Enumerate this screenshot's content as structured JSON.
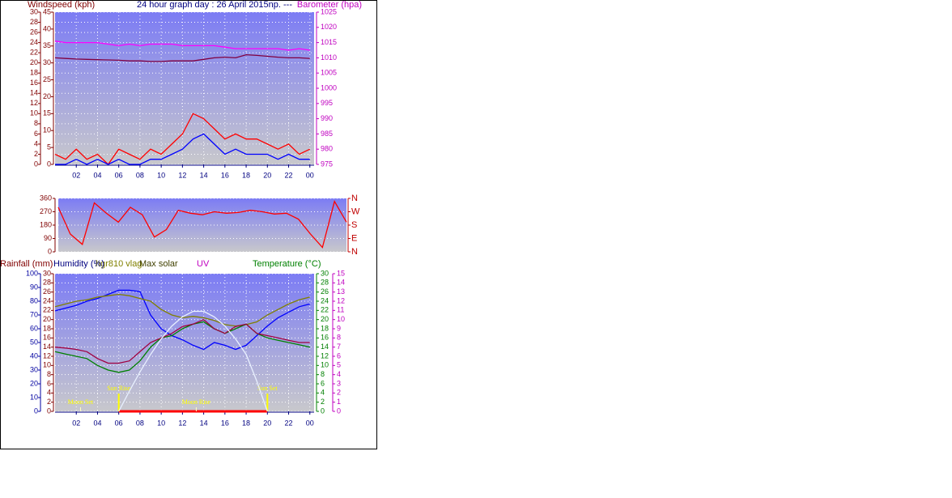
{
  "chart_data": [
    {
      "type": "line",
      "title": "24 hour graph day : 26 April 2015np. ---",
      "ylabel": "Windspeed (kph)",
      "y2label": "Barometer (hpa)",
      "x": [
        0,
        1,
        2,
        3,
        4,
        5,
        6,
        7,
        8,
        9,
        10,
        11,
        12,
        13,
        14,
        15,
        16,
        17,
        18,
        19,
        20,
        21,
        22,
        23,
        24
      ],
      "xlim": [
        0,
        24.4
      ],
      "xticks": [
        {
          "value": 2,
          "label": "02"
        },
        {
          "value": 4,
          "label": "04"
        },
        {
          "value": 6,
          "label": "06"
        },
        {
          "value": 8,
          "label": "08"
        },
        10,
        12,
        14,
        16,
        18,
        20,
        22,
        {
          "value": 24,
          "label": "00"
        }
      ],
      "ylim": [
        0,
        30
      ],
      "yticks": [
        0,
        2,
        4,
        6,
        8,
        10,
        12,
        14,
        16,
        18,
        20,
        22,
        24,
        26,
        28,
        30
      ],
      "y3lim": [
        0,
        45
      ],
      "y3ticks": [
        0,
        5,
        10,
        15,
        20,
        25,
        30,
        35,
        40,
        45
      ],
      "y2lim": [
        975,
        1025
      ],
      "y2ticks": [
        975,
        980,
        985,
        990,
        995,
        1000,
        1005,
        1010,
        1015,
        1020,
        1025
      ],
      "grid": true,
      "series": [
        {
          "color": "#ff0000",
          "values": [
            2,
            1,
            3,
            1,
            2,
            0,
            3,
            2,
            1,
            3,
            2,
            4,
            6,
            10,
            9,
            7,
            5,
            6,
            5,
            5,
            4,
            3,
            4,
            2,
            3
          ]
        },
        {
          "color": "#0000ff",
          "values": [
            0,
            0,
            1,
            0,
            1,
            0,
            1,
            0,
            0,
            1,
            1,
            2,
            3,
            5,
            6,
            4,
            2,
            3,
            2,
            2,
            2,
            1,
            2,
            1,
            1
          ]
        },
        {
          "color": "#ff00ff",
          "axis": "y2",
          "values": [
            1015.5,
            1015,
            1015,
            1015,
            1015,
            1014.5,
            1014,
            1014.5,
            1014,
            1014.5,
            1014.5,
            1014.5,
            1014,
            1014,
            1014,
            1014,
            1013.5,
            1013,
            1013,
            1013,
            1013,
            1013,
            1012.5,
            1013,
            1012.5
          ]
        },
        {
          "color": "#800040",
          "axis": "y2",
          "values": [
            1010,
            1009.8,
            1009.6,
            1009.5,
            1009.4,
            1009.3,
            1009.2,
            1009,
            1009,
            1008.8,
            1008.8,
            1009,
            1009,
            1009,
            1009.5,
            1010,
            1010.2,
            1010,
            1011,
            1010.8,
            1010.5,
            1010.2,
            1010,
            1010,
            1009.8
          ]
        }
      ]
    },
    {
      "type": "line",
      "x": [
        0,
        1,
        2,
        3,
        4,
        5,
        6,
        7,
        8,
        9,
        10,
        11,
        12,
        13,
        14,
        15,
        16,
        17,
        18,
        19,
        20,
        21,
        22,
        23,
        24
      ],
      "xlim": [
        0,
        24
      ],
      "ylim": [
        0,
        360
      ],
      "yticks": [
        0,
        90,
        180,
        270,
        360
      ],
      "y2lim": [
        0,
        360
      ],
      "y2ticks": [
        {
          "value": 0,
          "label": "N"
        },
        {
          "value": 90,
          "label": "E"
        },
        {
          "value": 180,
          "label": "S"
        },
        {
          "value": 270,
          "label": "W"
        },
        {
          "value": 360,
          "label": "N"
        }
      ],
      "grid": true,
      "series": [
        {
          "color": "#ff0000",
          "values": [
            300,
            120,
            50,
            330,
            260,
            200,
            300,
            250,
            100,
            150,
            280,
            260,
            250,
            270,
            260,
            265,
            280,
            270,
            255,
            260,
            220,
            120,
            30,
            340,
            200
          ]
        }
      ]
    },
    {
      "type": "line",
      "ylabel": "Rainfall (mm)",
      "y3label": "Humidity (%)",
      "y4label": "UV",
      "y2label": "Temperature (°C)",
      "x": [
        0,
        1,
        2,
        3,
        4,
        5,
        6,
        7,
        8,
        9,
        10,
        11,
        12,
        13,
        14,
        15,
        16,
        17,
        18,
        19,
        20,
        21,
        22,
        23,
        24
      ],
      "xlim": [
        0,
        24.4
      ],
      "xticks": [
        {
          "value": 2,
          "label": "02"
        },
        {
          "value": 4,
          "label": "04"
        },
        {
          "value": 6,
          "label": "06"
        },
        {
          "value": 8,
          "label": "08"
        },
        10,
        12,
        14,
        16,
        18,
        20,
        22,
        {
          "value": 24,
          "label": "00"
        }
      ],
      "ylim": [
        0,
        30
      ],
      "yticks": [
        0,
        2,
        4,
        6,
        8,
        10,
        12,
        14,
        16,
        18,
        20,
        22,
        24,
        26,
        28,
        30
      ],
      "y3lim": [
        0,
        100
      ],
      "y3ticks": [
        0,
        10,
        20,
        30,
        40,
        50,
        60,
        70,
        80,
        90,
        100
      ],
      "y2lim": [
        0,
        30
      ],
      "y2ticks": [
        0,
        2,
        4,
        6,
        8,
        10,
        12,
        14,
        16,
        18,
        20,
        22,
        24,
        26,
        28,
        30
      ],
      "y4lim": [
        0,
        15
      ],
      "y4ticks": [
        0,
        1,
        2,
        3,
        4,
        5,
        6,
        7,
        8,
        9,
        10,
        11,
        12,
        13,
        14,
        15
      ],
      "grid": true,
      "annotations": [
        {
          "text": "Moon Set",
          "x": 2.4
        },
        {
          "text": "Sun Rise",
          "x": 6
        },
        {
          "text": "Moon Rise",
          "x": 13.3
        },
        {
          "text": "Sun Set",
          "x": 20
        }
      ],
      "series": [
        {
          "color": "#0000ff",
          "axis": "y3",
          "values": [
            73,
            75,
            77,
            80,
            82,
            85,
            88,
            88,
            87,
            70,
            60,
            55,
            52,
            48,
            45,
            50,
            48,
            45,
            48,
            55,
            62,
            68,
            72,
            76,
            78
          ]
        },
        {
          "name": "hgr810 vlag",
          "color": "#808000",
          "axis": "y3",
          "values": [
            76,
            78,
            80,
            81,
            83,
            84,
            85,
            84,
            82,
            80,
            74,
            70,
            68,
            69,
            68,
            66,
            63,
            62,
            63,
            65,
            70,
            74,
            78,
            81,
            83
          ]
        },
        {
          "color": "#008000",
          "axis": "y2",
          "values": [
            13,
            12.5,
            12,
            11.5,
            10,
            9,
            8.5,
            9,
            11,
            14,
            16,
            16.5,
            18,
            19,
            19.5,
            18,
            17,
            18,
            19,
            17,
            16,
            15.5,
            15,
            14.5,
            14
          ]
        },
        {
          "color": "#a00040",
          "axis": "y2",
          "values": [
            14,
            13.8,
            13.5,
            13,
            11.5,
            10.5,
            10.5,
            11,
            13,
            15,
            16,
            17,
            18.5,
            19,
            20,
            18,
            17,
            18.5,
            19,
            17,
            16.5,
            16,
            15.5,
            15,
            15
          ]
        },
        {
          "name": "Max solar",
          "color": "#e8f0ff",
          "axis": "y4",
          "values": [
            null,
            null,
            null,
            null,
            null,
            null,
            0,
            2.2,
            4.3,
            6.2,
            7.9,
            9.3,
            10.3,
            10.9,
            10.9,
            10.3,
            9.3,
            7.9,
            6.2,
            3.3,
            0,
            null,
            null,
            null,
            null
          ]
        }
      ]
    }
  ]
}
